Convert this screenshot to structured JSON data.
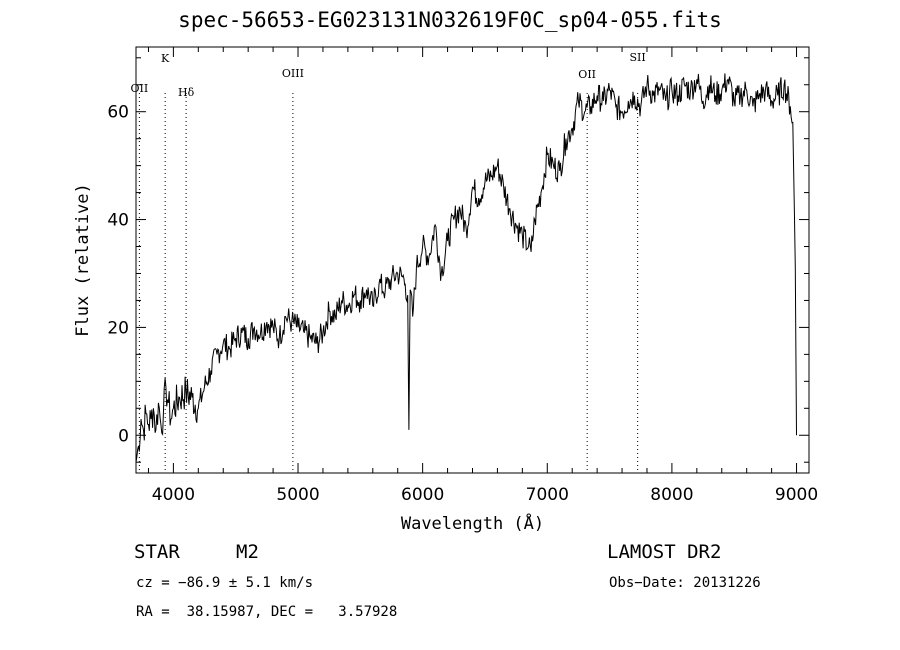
{
  "chart_data": {
    "type": "line",
    "title": "spec-56653-EG023131N032619F0C_sp04-055.fits",
    "xlabel": "Wavelength (Å)",
    "ylabel": "Flux (relative)",
    "xlim": [
      3700,
      9100
    ],
    "ylim": [
      -7,
      72
    ],
    "xticks": [
      4000,
      5000,
      6000,
      7000,
      8000,
      9000
    ],
    "yticks": [
      0,
      20,
      40,
      60
    ],
    "grid": false,
    "lines": [
      {
        "label": "OII",
        "x": 3727
      },
      {
        "label": "K",
        "x": 3934
      },
      {
        "label": "Hδ",
        "x": 4102
      },
      {
        "label": "OIII",
        "x": 4959
      },
      {
        "label": "OII",
        "x": 7320
      },
      {
        "label": "SII",
        "x": 7725
      }
    ],
    "series": [
      {
        "x": [
          3700,
          3720,
          3740,
          3760,
          3780,
          3800,
          3820,
          3840,
          3860,
          3880,
          3900,
          3920,
          3940,
          3960,
          3980,
          4000,
          4050,
          4100,
          4150,
          4200,
          4250,
          4300,
          4350,
          4400,
          4450,
          4500,
          4550,
          4600,
          4650,
          4700,
          4750,
          4800,
          4850,
          4900,
          4950,
          5000,
          5050,
          5100,
          5150,
          5200,
          5250,
          5300,
          5350,
          5400,
          5450,
          5500,
          5550,
          5600,
          5650,
          5700,
          5750,
          5800,
          5850,
          5860,
          5880,
          5890,
          5900,
          5920,
          5950,
          6000,
          6050,
          6100,
          6150,
          6200,
          6250,
          6300,
          6350,
          6400,
          6450,
          6500,
          6550,
          6600,
          6650,
          6700,
          6750,
          6800,
          6850,
          6870,
          6900,
          6950,
          7000,
          7050,
          7100,
          7150,
          7200,
          7250,
          7300,
          7350,
          7400,
          7450,
          7500,
          7550,
          7600,
          7650,
          7700,
          7750,
          7800,
          7850,
          7900,
          7950,
          8000,
          8050,
          8100,
          8150,
          8200,
          8250,
          8300,
          8350,
          8400,
          8450,
          8500,
          8550,
          8600,
          8650,
          8700,
          8750,
          8800,
          8850,
          8900,
          8950,
          8970,
          8990,
          9000
        ],
        "values": [
          -5,
          -2,
          3,
          1,
          4,
          2,
          3,
          5,
          1,
          6,
          2,
          4,
          9,
          6,
          3,
          5,
          7,
          8,
          7,
          5,
          9,
          12,
          15,
          17,
          16,
          18,
          19,
          18,
          20,
          19,
          21,
          20,
          18,
          22,
          21,
          20,
          19,
          18,
          17,
          19,
          23,
          22,
          25,
          24,
          26,
          25,
          27,
          24,
          28,
          27,
          29,
          30,
          29,
          28,
          26,
          1,
          27,
          22,
          31,
          35,
          33,
          39,
          30,
          36,
          40,
          42,
          38,
          46,
          44,
          47,
          48,
          50,
          46,
          42,
          39,
          37,
          35,
          34,
          40,
          45,
          52,
          50,
          49,
          55,
          57,
          62,
          60,
          61,
          63,
          62,
          64,
          61,
          60,
          62,
          63,
          61,
          65,
          63,
          64,
          62,
          64,
          63,
          65,
          64,
          66,
          62,
          65,
          63,
          64,
          66,
          62,
          63,
          64,
          61,
          63,
          64,
          62,
          63,
          65,
          61,
          58,
          31,
          0
        ]
      }
    ]
  },
  "footer": {
    "class_label": "STAR",
    "subclass": "M2",
    "survey": "LAMOST DR2",
    "cz": "cz = −86.9 ± 5.1 km/s",
    "obs_date": "Obs−Date: 20131226",
    "coords": "RA =  38.15987, DEC =   3.57928"
  }
}
